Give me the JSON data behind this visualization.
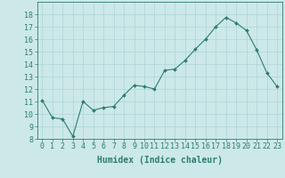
{
  "x": [
    0,
    1,
    2,
    3,
    4,
    5,
    6,
    7,
    8,
    9,
    10,
    11,
    12,
    13,
    14,
    15,
    16,
    17,
    18,
    19,
    20,
    21,
    22,
    23
  ],
  "y": [
    11.1,
    9.7,
    9.6,
    8.2,
    11.0,
    10.3,
    10.5,
    10.6,
    11.5,
    12.3,
    12.2,
    12.0,
    13.5,
    13.6,
    14.3,
    15.2,
    16.0,
    17.0,
    17.75,
    17.3,
    16.7,
    15.15,
    13.3,
    12.2
  ],
  "xlabel": "Humidex (Indice chaleur)",
  "ylim": [
    8,
    19
  ],
  "xlim": [
    -0.5,
    23.5
  ],
  "yticks": [
    8,
    9,
    10,
    11,
    12,
    13,
    14,
    15,
    16,
    17,
    18
  ],
  "xticks": [
    0,
    1,
    2,
    3,
    4,
    5,
    6,
    7,
    8,
    9,
    10,
    11,
    12,
    13,
    14,
    15,
    16,
    17,
    18,
    19,
    20,
    21,
    22,
    23
  ],
  "xtick_labels": [
    "0",
    "1",
    "2",
    "3",
    "4",
    "5",
    "6",
    "7",
    "8",
    "9",
    "10",
    "11",
    "12",
    "13",
    "14",
    "15",
    "16",
    "17",
    "18",
    "19",
    "20",
    "21",
    "22",
    "23"
  ],
  "line_color": "#2e7d6e",
  "marker_color": "#2e7d6e",
  "bg_color": "#cce8e8",
  "grid_color": "#aed4d4",
  "axis_color": "#2e7d6e",
  "xlabel_fontsize": 7,
  "tick_fontsize": 6
}
